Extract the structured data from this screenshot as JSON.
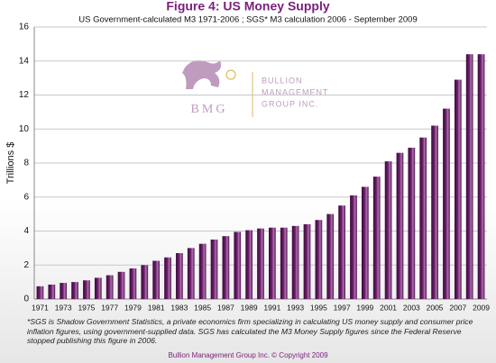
{
  "chart_data": {
    "type": "bar",
    "title": "Figure 4: US Money Supply",
    "subtitle": "US Government-calculated  M3 1971-2006 ; SGS* M3 calculation 2006 - September 2009",
    "ylabel": "Trillions $",
    "categories": [
      "1971",
      null,
      "1973",
      null,
      "1975",
      null,
      "1977",
      null,
      "1979",
      null,
      "1981",
      null,
      "1983",
      null,
      "1985",
      null,
      "1987",
      null,
      "1989",
      null,
      "1991",
      null,
      "1993",
      null,
      "1995",
      null,
      "1997",
      null,
      "1999",
      null,
      "2001",
      null,
      "2003",
      null,
      "2005",
      null,
      "2007",
      null,
      "2009"
    ],
    "values": [
      0.75,
      0.85,
      0.95,
      1.0,
      1.1,
      1.25,
      1.4,
      1.6,
      1.8,
      2.0,
      2.25,
      2.45,
      2.7,
      3.0,
      3.25,
      3.5,
      3.7,
      3.95,
      4.05,
      4.15,
      4.2,
      4.2,
      4.3,
      4.4,
      4.65,
      5.0,
      5.5,
      6.1,
      6.6,
      7.2,
      8.1,
      8.6,
      8.9,
      9.5,
      10.2,
      11.2,
      12.9,
      14.4,
      14.4
    ],
    "color": "#6b1f6b",
    "ylim": [
      0,
      16
    ],
    "yticks": [
      0,
      2,
      4,
      6,
      8,
      10,
      12,
      14,
      16
    ],
    "grid": true,
    "logo": {
      "mark": "BMG",
      "lines": [
        "BULLION",
        "MANAGEMENT",
        "GROUP INC."
      ]
    },
    "footnote": "*SGS is Shadow Government Statistics, a private economics firm specializing in calculating  US money supply and consumer price inflation figures, using government-supplied  data. SGS has calculated the M3 Money Supply figures since the Federal Reserve stopped publishing this figure in 2006.",
    "source": "Bullion Management Group Inc. © Copyright 2009"
  }
}
